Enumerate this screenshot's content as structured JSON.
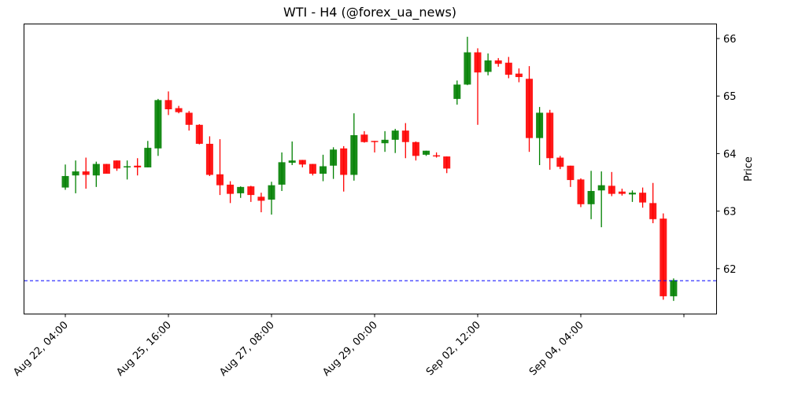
{
  "chart_data": {
    "type": "candlestick",
    "title": "WTI - H4 (@forex_ua_news)",
    "xlabel": "",
    "ylabel": "Price",
    "ylim": [
      61.2,
      66.25
    ],
    "y_ticks": [
      62,
      63,
      64,
      65,
      66
    ],
    "x_tick_labels": [
      "Aug 22, 04:00",
      "Aug 25, 16:00",
      "Aug 27, 08:00",
      "Aug 29, 00:00",
      "Sep 02, 12:00",
      "Sep 04, 04:00",
      ""
    ],
    "x_tick_candle_index": [
      0,
      10,
      20,
      30,
      40,
      50,
      60
    ],
    "y_axis_position": "right",
    "grid": false,
    "colors": {
      "up": "#008000",
      "down": "#ff0000",
      "reference_line": "#0000ff"
    },
    "reference_line": {
      "value": 61.79,
      "style": "dashed"
    },
    "candles": [
      {
        "o": 63.41,
        "h": 63.81,
        "l": 63.37,
        "c": 63.61
      },
      {
        "o": 63.62,
        "h": 63.88,
        "l": 63.31,
        "c": 63.69
      },
      {
        "o": 63.69,
        "h": 63.93,
        "l": 63.39,
        "c": 63.63
      },
      {
        "o": 63.62,
        "h": 63.86,
        "l": 63.42,
        "c": 63.82
      },
      {
        "o": 63.82,
        "h": 63.82,
        "l": 63.66,
        "c": 63.65
      },
      {
        "o": 63.88,
        "h": 63.88,
        "l": 63.7,
        "c": 63.74
      },
      {
        "o": 63.76,
        "h": 63.88,
        "l": 63.55,
        "c": 63.78
      },
      {
        "o": 63.79,
        "h": 63.92,
        "l": 63.62,
        "c": 63.76
      },
      {
        "o": 63.76,
        "h": 64.22,
        "l": 63.76,
        "c": 64.1
      },
      {
        "o": 64.09,
        "h": 64.95,
        "l": 63.96,
        "c": 64.93
      },
      {
        "o": 64.93,
        "h": 65.08,
        "l": 64.67,
        "c": 64.77
      },
      {
        "o": 64.79,
        "h": 64.83,
        "l": 64.7,
        "c": 64.72
      },
      {
        "o": 64.71,
        "h": 64.74,
        "l": 64.4,
        "c": 64.5
      },
      {
        "o": 64.5,
        "h": 64.51,
        "l": 64.16,
        "c": 64.17
      },
      {
        "o": 64.17,
        "h": 64.3,
        "l": 63.61,
        "c": 63.63
      },
      {
        "o": 63.64,
        "h": 64.25,
        "l": 63.28,
        "c": 63.45
      },
      {
        "o": 63.46,
        "h": 63.52,
        "l": 63.14,
        "c": 63.3
      },
      {
        "o": 63.31,
        "h": 63.43,
        "l": 63.23,
        "c": 63.42
      },
      {
        "o": 63.43,
        "h": 63.44,
        "l": 63.16,
        "c": 63.28
      },
      {
        "o": 63.25,
        "h": 63.32,
        "l": 62.98,
        "c": 63.18
      },
      {
        "o": 63.2,
        "h": 63.51,
        "l": 62.94,
        "c": 63.45
      },
      {
        "o": 63.46,
        "h": 64.02,
        "l": 63.35,
        "c": 63.85
      },
      {
        "o": 63.84,
        "h": 64.21,
        "l": 63.8,
        "c": 63.88
      },
      {
        "o": 63.89,
        "h": 63.89,
        "l": 63.76,
        "c": 63.81
      },
      {
        "o": 63.82,
        "h": 63.82,
        "l": 63.62,
        "c": 63.65
      },
      {
        "o": 63.65,
        "h": 63.98,
        "l": 63.52,
        "c": 63.78
      },
      {
        "o": 63.79,
        "h": 64.11,
        "l": 63.56,
        "c": 64.07
      },
      {
        "o": 64.09,
        "h": 64.13,
        "l": 63.34,
        "c": 63.63
      },
      {
        "o": 63.63,
        "h": 64.7,
        "l": 63.53,
        "c": 64.32
      },
      {
        "o": 64.33,
        "h": 64.39,
        "l": 64.19,
        "c": 64.2
      },
      {
        "o": 64.22,
        "h": 64.22,
        "l": 64.02,
        "c": 64.2
      },
      {
        "o": 64.18,
        "h": 64.39,
        "l": 64.03,
        "c": 64.24
      },
      {
        "o": 64.24,
        "h": 64.43,
        "l": 64.01,
        "c": 64.4
      },
      {
        "o": 64.4,
        "h": 64.53,
        "l": 63.92,
        "c": 64.2
      },
      {
        "o": 64.2,
        "h": 64.21,
        "l": 63.88,
        "c": 63.96
      },
      {
        "o": 63.98,
        "h": 64.05,
        "l": 63.96,
        "c": 64.05
      },
      {
        "o": 63.97,
        "h": 64.02,
        "l": 63.93,
        "c": 63.96
      },
      {
        "o": 63.95,
        "h": 63.95,
        "l": 63.66,
        "c": 63.74
      },
      {
        "o": 64.95,
        "h": 65.27,
        "l": 64.85,
        "c": 65.2
      },
      {
        "o": 65.2,
        "h": 66.03,
        "l": 65.19,
        "c": 65.76
      },
      {
        "o": 65.76,
        "h": 65.83,
        "l": 64.5,
        "c": 65.41
      },
      {
        "o": 65.42,
        "h": 65.74,
        "l": 65.36,
        "c": 65.62
      },
      {
        "o": 65.62,
        "h": 65.66,
        "l": 65.51,
        "c": 65.56
      },
      {
        "o": 65.58,
        "h": 65.68,
        "l": 65.31,
        "c": 65.37
      },
      {
        "o": 65.39,
        "h": 65.48,
        "l": 65.24,
        "c": 65.33
      },
      {
        "o": 65.3,
        "h": 65.52,
        "l": 64.03,
        "c": 64.27
      },
      {
        "o": 64.27,
        "h": 64.81,
        "l": 63.8,
        "c": 64.71
      },
      {
        "o": 64.71,
        "h": 64.76,
        "l": 63.72,
        "c": 63.92
      },
      {
        "o": 63.93,
        "h": 63.96,
        "l": 63.73,
        "c": 63.77
      },
      {
        "o": 63.79,
        "h": 63.79,
        "l": 63.42,
        "c": 63.54
      },
      {
        "o": 63.55,
        "h": 63.57,
        "l": 63.07,
        "c": 63.12
      },
      {
        "o": 63.12,
        "h": 63.7,
        "l": 62.86,
        "c": 63.35
      },
      {
        "o": 63.36,
        "h": 63.69,
        "l": 62.72,
        "c": 63.45
      },
      {
        "o": 63.44,
        "h": 63.68,
        "l": 63.26,
        "c": 63.3
      },
      {
        "o": 63.34,
        "h": 63.39,
        "l": 63.27,
        "c": 63.3
      },
      {
        "o": 63.29,
        "h": 63.36,
        "l": 63.16,
        "c": 63.32
      },
      {
        "o": 63.32,
        "h": 63.41,
        "l": 63.06,
        "c": 63.15
      },
      {
        "o": 63.14,
        "h": 63.49,
        "l": 62.79,
        "c": 62.86
      },
      {
        "o": 62.87,
        "h": 62.96,
        "l": 61.46,
        "c": 61.52
      },
      {
        "o": 61.52,
        "h": 61.83,
        "l": 61.44,
        "c": 61.8
      }
    ]
  }
}
